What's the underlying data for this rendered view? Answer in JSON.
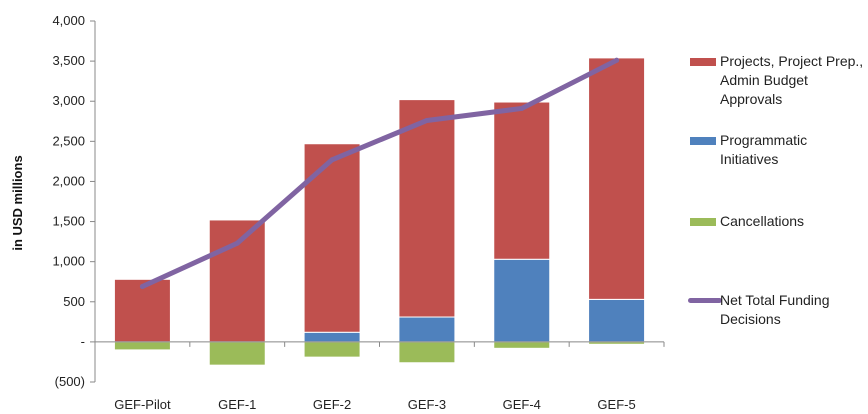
{
  "chart_data": {
    "type": "bar",
    "stacked": true,
    "categories": [
      "GEF-Pilot",
      "GEF-1",
      "GEF-2",
      "GEF-3",
      "GEF-4",
      "GEF-5"
    ],
    "ylabel": "in USD millions",
    "ylim": [
      -500,
      4000
    ],
    "yticks": [
      -500,
      0,
      500,
      1000,
      1500,
      2000,
      2500,
      3000,
      3500,
      4000
    ],
    "ytick_labels": [
      "(500)",
      "-",
      "500",
      "1,000",
      "1,500",
      "2,000",
      "2,500",
      "3,000",
      "3,500",
      "4,000"
    ],
    "legend_position": "right",
    "series": [
      {
        "name": "Projects, Project Prep., Admin Budget Approvals",
        "kind": "bar",
        "color": "#C0504D",
        "values": [
          780,
          1520,
          2350,
          2710,
          1960,
          3010
        ]
      },
      {
        "name": "Programmatic Initiatives",
        "kind": "bar",
        "color": "#4F81BD",
        "values": [
          0,
          0,
          120,
          310,
          1030,
          530
        ]
      },
      {
        "name": "Cancellations",
        "kind": "bar",
        "color": "#9BBB59",
        "values": [
          -100,
          -290,
          -190,
          -260,
          -80,
          -30
        ]
      },
      {
        "name": "Net Total Funding Decisions",
        "kind": "line",
        "color": "#8064A2",
        "values": [
          690,
          1230,
          2270,
          2760,
          2910,
          3510
        ]
      }
    ]
  }
}
